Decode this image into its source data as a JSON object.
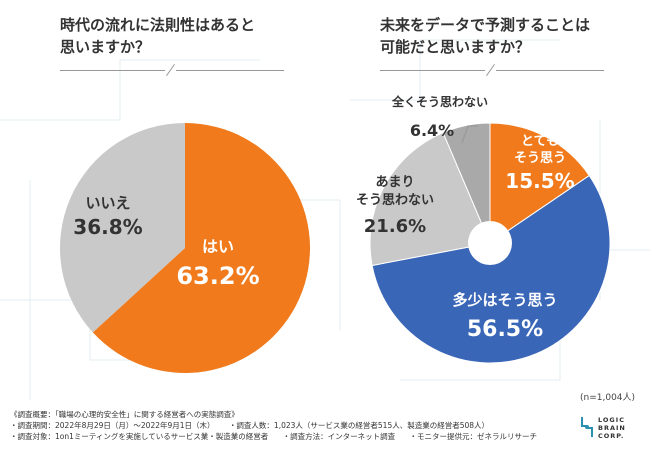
{
  "chart_data": [
    {
      "type": "pie",
      "title": "時代の流れに法則性はあると思いますか？",
      "title_lines": [
        "時代の流れに法則性はあると",
        "思いますか？"
      ],
      "slices": [
        {
          "label": "はい",
          "value": 63.2,
          "value_text": "63.2%",
          "color": "#f07a1c"
        },
        {
          "label": "いいえ",
          "value": 36.8,
          "value_text": "36.8%",
          "color": "#c9c9c9"
        }
      ]
    },
    {
      "type": "pie",
      "title": "未来をデータで予測することは可能だと思いますか？",
      "title_lines": [
        "未来をデータで予測することは",
        "可能だと思いますか？"
      ],
      "slices": [
        {
          "label": "とても\nそう思う",
          "value": 15.5,
          "value_text": "15.5%",
          "color": "#f07a1c"
        },
        {
          "label": "多少はそう思う",
          "value": 56.5,
          "value_text": "56.5%",
          "color": "#3a66b8"
        },
        {
          "label": "あまり\nそう思わない",
          "value": 21.6,
          "value_text": "21.6%",
          "color": "#c9c9c9"
        },
        {
          "label": "全くそう思わない",
          "value": 6.4,
          "value_text": "6.4%",
          "color": "#a9a9a9"
        }
      ]
    }
  ],
  "sample_size": "(n=1,004人)",
  "footnote": {
    "line1": "《調査概要：「職場の心理的安全性」に関する経営者への実態調査》",
    "line2a": "・調査期間：2022年8月29日（月）〜2022年9月1日（木）",
    "line2b": "・調査人数：1,023人（サービス業の経営者515人、製造業の経営者508人）",
    "line3a": "・調査対象：1on1ミーティングを実施しているサービス業・製造業の経営者",
    "line3b": "・調査方法：インターネット調査",
    "line3c": "・モニター提供元：ゼネラルリサーチ"
  },
  "logo": {
    "line1": "LOGIC",
    "line2": "BRAIN",
    "line3": "CORP."
  },
  "colors": {
    "orange": "#f07a1c",
    "blue": "#3a66b8",
    "gray": "#c9c9c9",
    "dark_gray": "#a9a9a9"
  }
}
